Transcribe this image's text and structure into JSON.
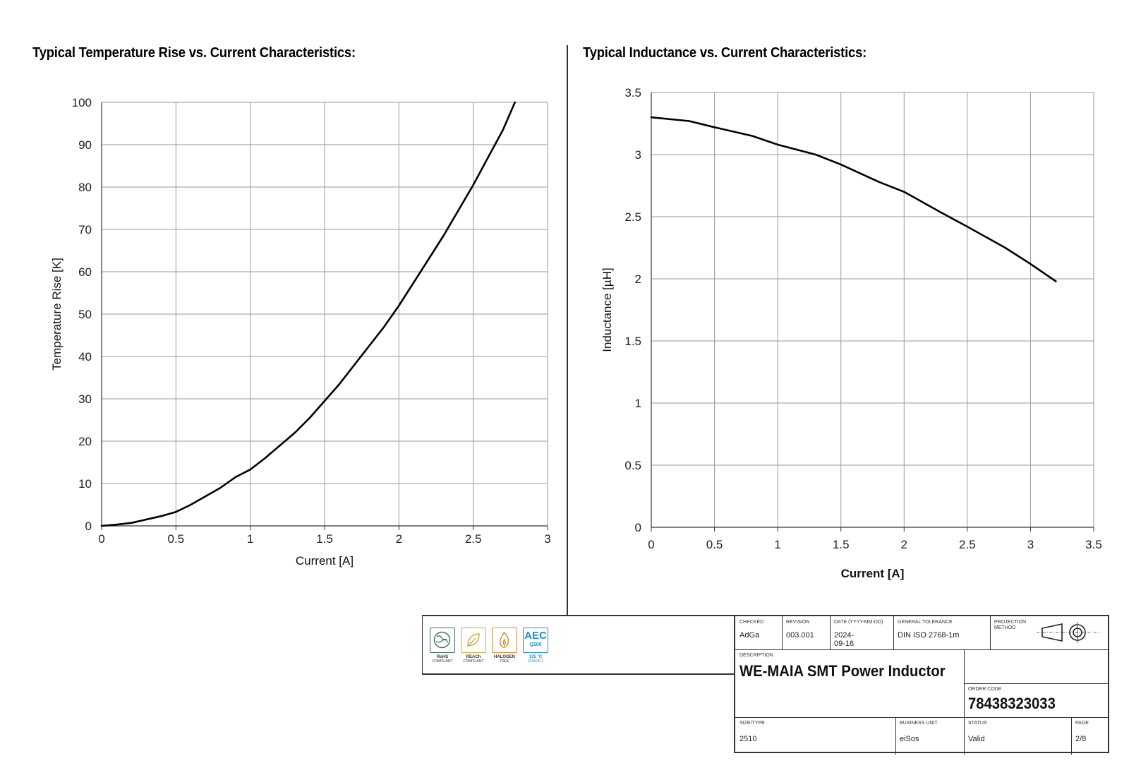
{
  "chart_data": [
    {
      "type": "line",
      "title": "Typical Temperature Rise vs. Current Characteristics:",
      "xlabel": "Current [A]",
      "ylabel": "Temperature Rise [K]",
      "xlim": [
        0,
        3
      ],
      "ylim": [
        0,
        100
      ],
      "xticks": [
        "0",
        "0.5",
        "1",
        "1.5",
        "2",
        "2.5",
        "3"
      ],
      "yticks": [
        "0",
        "10",
        "20",
        "30",
        "40",
        "50",
        "60",
        "70",
        "80",
        "90",
        "100"
      ],
      "grid": true,
      "series": [
        {
          "x": [
            0,
            0.1,
            0.2,
            0.3,
            0.4,
            0.5,
            0.6,
            0.7,
            0.8,
            0.9,
            1.0,
            1.1,
            1.2,
            1.3,
            1.4,
            1.5,
            1.6,
            1.7,
            1.8,
            1.9,
            2.0,
            2.1,
            2.2,
            2.3,
            2.4,
            2.5,
            2.6,
            2.7,
            2.78
          ],
          "y": [
            0,
            0.3,
            0.7,
            1.5,
            2.3,
            3.3,
            5.0,
            7.0,
            9.0,
            11.5,
            13.3,
            16.0,
            19.0,
            22.0,
            25.5,
            29.5,
            33.5,
            38.0,
            42.5,
            47.0,
            52.0,
            57.5,
            63.0,
            68.5,
            74.5,
            80.5,
            87.0,
            93.5,
            100
          ]
        }
      ]
    },
    {
      "type": "line",
      "title": "Typical Inductance vs. Current Characteristics:",
      "xlabel": "Current [A]",
      "ylabel": "Inductance [µH]",
      "xlim": [
        0,
        3.5
      ],
      "ylim": [
        0,
        3.5
      ],
      "xticks": [
        "0",
        "0.5",
        "1",
        "1.5",
        "2",
        "2.5",
        "3",
        "3.5"
      ],
      "yticks": [
        "0",
        "0.5",
        "1",
        "1.5",
        "2",
        "2.5",
        "3",
        "3.5"
      ],
      "grid": true,
      "series": [
        {
          "x": [
            0,
            0.3,
            0.5,
            0.8,
            1.0,
            1.3,
            1.5,
            1.8,
            2.0,
            2.3,
            2.5,
            2.8,
            3.0,
            3.2
          ],
          "y": [
            3.3,
            3.27,
            3.22,
            3.15,
            3.08,
            3.0,
            2.92,
            2.78,
            2.7,
            2.53,
            2.42,
            2.25,
            2.12,
            1.98
          ]
        }
      ]
    }
  ],
  "badges": [
    {
      "name": "RoHS",
      "sub": "COMPLIANT",
      "color": "#3e6b5b"
    },
    {
      "name": "REACh",
      "sub": "COMPLIANT",
      "color": "#c7b23a"
    },
    {
      "name": "HALOGEN",
      "sub": "FREE",
      "color": "#d98a2a"
    },
    {
      "name": "125 °C",
      "sub": "GRADE 1",
      "color": "#1a8fd0",
      "aec": "AEC",
      "aec_sub": "Q200"
    }
  ],
  "title_block": {
    "checked_label": "CHECKED",
    "checked": "AdGa",
    "revision_label": "REVISION",
    "revision": "003.001",
    "date_label": "DATE (YYYY-MM-DD)",
    "date": "2024-09-16",
    "tolerance_label": "GENERAL TOLERANCE",
    "tolerance": "DIN ISO 2768-1m",
    "projection_label": "PROJECTION METHOD",
    "description_label": "DESCRIPTION",
    "description": "WE-MAIA SMT Power Inductor",
    "order_code_label": "ORDER CODE",
    "order_code": "78438323033",
    "size_label": "SIZE/TYPE",
    "size": "2510",
    "business_unit_label": "BUSINESS UNIT",
    "business_unit": "eiSos",
    "status_label": "STATUS",
    "status": "Valid",
    "page_label": "PAGE",
    "page": "2/8"
  }
}
